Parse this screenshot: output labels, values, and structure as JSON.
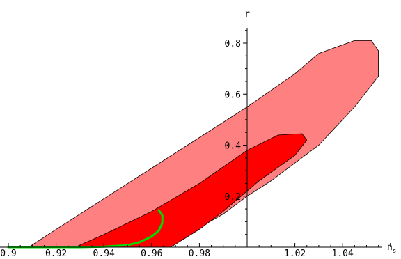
{
  "chart_data": {
    "type": "area",
    "title": "",
    "xlabel": "n",
    "xlabel_subscript": "s",
    "ylabel": "r",
    "xlim": [
      0.9,
      1.06
    ],
    "ylim": [
      0,
      0.86
    ],
    "x_ticks": [
      0.9,
      0.92,
      0.94,
      0.96,
      0.98,
      1.02,
      1.04
    ],
    "x_tick_labels": [
      "0.9",
      "0.92",
      "0.94",
      "0.96",
      "0.98",
      "1.02",
      "1.04"
    ],
    "y_ticks": [
      0.2,
      0.4,
      0.6,
      0.8
    ],
    "y_tick_labels": [
      "0.2",
      "0.4",
      "0.6",
      "0.8"
    ],
    "y_axis_at_x": 1.0,
    "grid": false,
    "series": [
      {
        "role": "outer-contour",
        "color": "#ff8080",
        "points": [
          [
            0.9085,
            0.0
          ],
          [
            0.92,
            0.07
          ],
          [
            0.94,
            0.19
          ],
          [
            0.96,
            0.31
          ],
          [
            0.98,
            0.43
          ],
          [
            1.0,
            0.55
          ],
          [
            1.02,
            0.68
          ],
          [
            1.03,
            0.76
          ],
          [
            1.045,
            0.81
          ],
          [
            1.052,
            0.81
          ],
          [
            1.055,
            0.77
          ],
          [
            1.055,
            0.67
          ],
          [
            1.045,
            0.55
          ],
          [
            1.03,
            0.4
          ],
          [
            1.01,
            0.26
          ],
          [
            1.0,
            0.2
          ],
          [
            0.99,
            0.13
          ],
          [
            0.975,
            0.05
          ],
          [
            0.965,
            0.0
          ]
        ]
      },
      {
        "role": "inner-contour",
        "color": "#ff0000",
        "points": [
          [
            0.928,
            0.0
          ],
          [
            0.94,
            0.05
          ],
          [
            0.96,
            0.14
          ],
          [
            0.98,
            0.25
          ],
          [
            1.0,
            0.38
          ],
          [
            1.013,
            0.44
          ],
          [
            1.023,
            0.445
          ],
          [
            1.025,
            0.42
          ],
          [
            1.02,
            0.36
          ],
          [
            1.005,
            0.26
          ],
          [
            0.99,
            0.14
          ],
          [
            0.98,
            0.07
          ],
          [
            0.968,
            0.0
          ]
        ]
      },
      {
        "role": "model-curve",
        "color": "#00dd00",
        "points": [
          [
            0.9,
            0.0
          ],
          [
            0.92,
            0.0
          ],
          [
            0.93,
            0.0
          ],
          [
            0.94,
            0.002
          ],
          [
            0.95,
            0.008
          ],
          [
            0.955,
            0.02
          ],
          [
            0.96,
            0.042
          ],
          [
            0.963,
            0.065
          ],
          [
            0.9645,
            0.095
          ],
          [
            0.9645,
            0.125
          ],
          [
            0.963,
            0.145
          ]
        ]
      }
    ]
  }
}
